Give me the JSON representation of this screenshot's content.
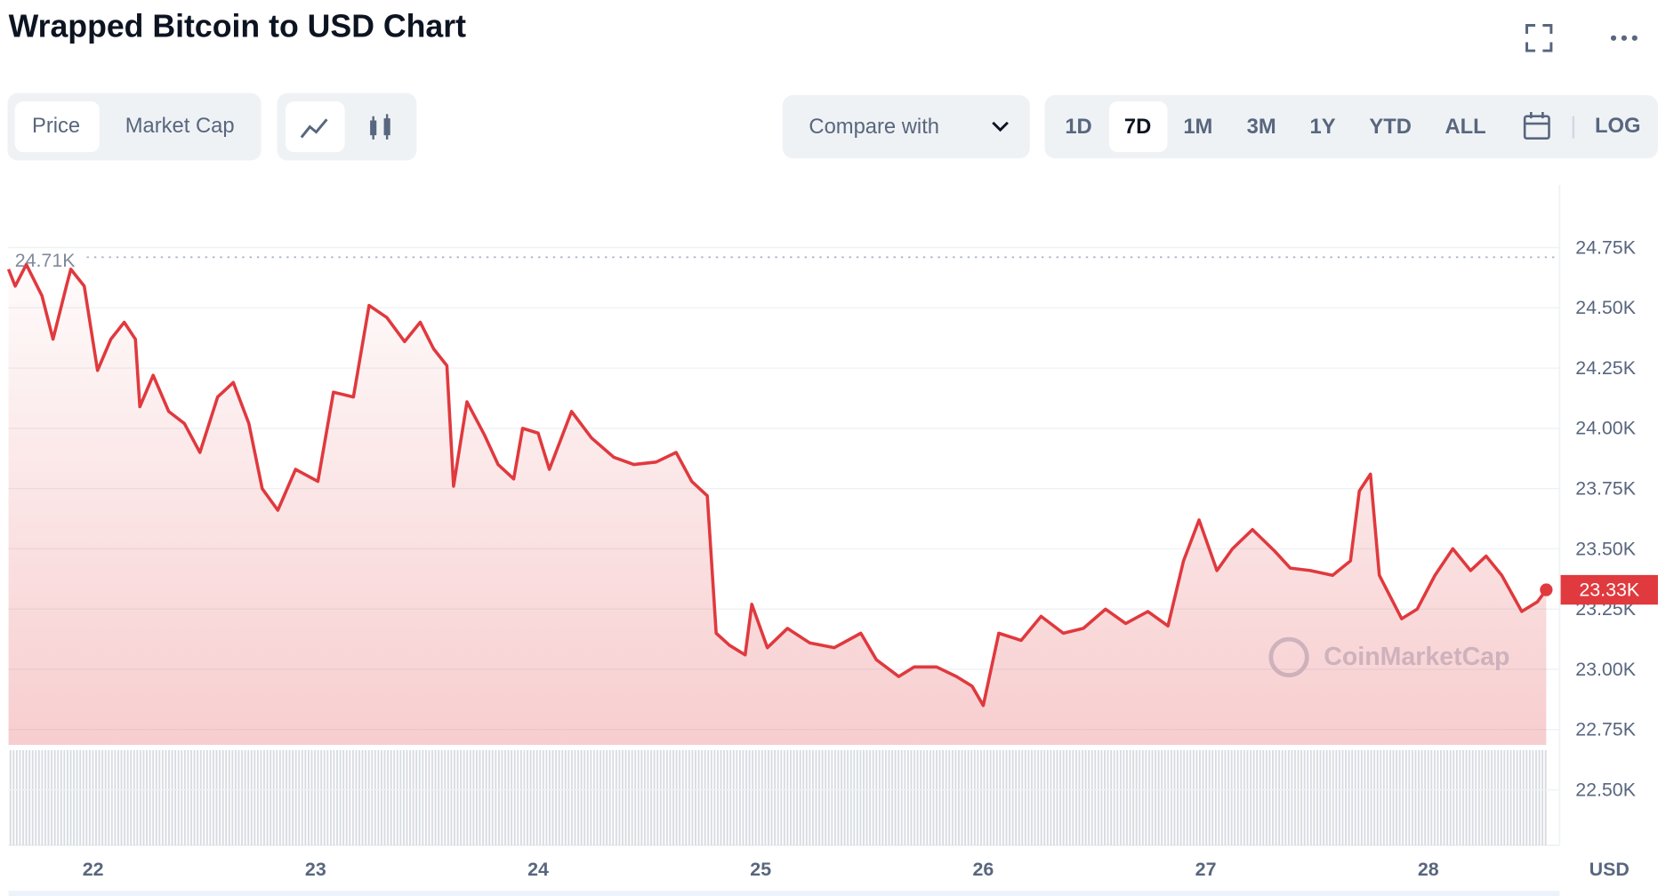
{
  "page": {
    "title": "Wrapped Bitcoin to USD Chart",
    "tabs": [
      "Price",
      "Market Cap"
    ],
    "compare": "Compare with",
    "ranges": [
      "1D",
      "7D",
      "1M",
      "3M",
      "1Y",
      "YTD",
      "ALL"
    ],
    "log": "LOG"
  },
  "chart_data": {
    "type": "line",
    "color": "#e0393e",
    "watermark": "CoinMarketCap",
    "y_axis_label": "USD",
    "x": [
      21.62,
      21.65,
      21.7,
      21.77,
      21.82,
      21.88,
      21.9,
      21.96,
      22.02,
      22.08,
      22.14,
      22.19,
      22.21,
      22.27,
      22.34,
      22.41,
      22.48,
      22.56,
      22.63,
      22.7,
      22.76,
      22.83,
      22.91,
      23.01,
      23.08,
      23.17,
      23.24,
      23.32,
      23.4,
      23.47,
      23.53,
      23.59,
      23.62,
      23.68,
      23.76,
      23.82,
      23.89,
      23.93,
      24.0,
      24.05,
      24.15,
      24.24,
      24.34,
      24.43,
      24.53,
      24.62,
      24.69,
      24.76,
      24.8,
      24.86,
      24.93,
      24.96,
      25.03,
      25.12,
      25.22,
      25.33,
      25.45,
      25.52,
      25.62,
      25.69,
      25.79,
      25.88,
      25.95,
      26.0,
      26.07,
      26.17,
      26.26,
      26.36,
      26.45,
      26.55,
      26.64,
      26.74,
      26.83,
      26.9,
      26.97,
      27.05,
      27.12,
      27.21,
      27.31,
      27.38,
      27.47,
      27.57,
      27.65,
      27.69,
      27.74,
      27.78,
      27.88,
      27.95,
      28.03,
      28.11,
      28.19,
      28.26,
      28.33,
      28.42,
      28.49,
      28.53
    ],
    "values": [
      24660,
      24590,
      24680,
      24550,
      24370,
      24590,
      24660,
      24590,
      24240,
      24370,
      24440,
      24370,
      24090,
      24220,
      24070,
      24020,
      23900,
      24130,
      24190,
      24020,
      23750,
      23660,
      23830,
      23780,
      24150,
      24130,
      24510,
      24460,
      24360,
      24440,
      24330,
      24260,
      23760,
      24110,
      23970,
      23850,
      23790,
      24000,
      23980,
      23830,
      24070,
      23960,
      23880,
      23850,
      23860,
      23900,
      23780,
      23720,
      23150,
      23100,
      23060,
      23270,
      23090,
      23170,
      23110,
      23090,
      23150,
      23040,
      22970,
      23010,
      23010,
      22970,
      22930,
      22850,
      23150,
      23120,
      23220,
      23150,
      23170,
      23250,
      23190,
      23240,
      23180,
      23450,
      23620,
      23410,
      23500,
      23580,
      23490,
      23420,
      23410,
      23390,
      23450,
      23740,
      23810,
      23390,
      23210,
      23250,
      23390,
      23500,
      23410,
      23470,
      23390,
      23240,
      23280,
      23330
    ],
    "xlim": [
      21.62,
      28.59
    ],
    "xticks": [
      22,
      23,
      24,
      25,
      26,
      27,
      28
    ],
    "ylim": [
      22270,
      25010
    ],
    "yticks": [
      {
        "value": 22500,
        "label": "22.50K"
      },
      {
        "value": 22750,
        "label": "22.75K"
      },
      {
        "value": 23000,
        "label": "23.00K"
      },
      {
        "value": 23250,
        "label": "23.25K"
      },
      {
        "value": 23500,
        "label": "23.50K"
      },
      {
        "value": 23750,
        "label": "23.75K"
      },
      {
        "value": 24000,
        "label": "24.00K"
      },
      {
        "value": 24250,
        "label": "24.25K"
      },
      {
        "value": 24500,
        "label": "24.50K"
      },
      {
        "value": 24750,
        "label": "24.75K"
      }
    ],
    "grid": true,
    "high_label": {
      "value": 24710,
      "label": "24.71K"
    },
    "last_label": {
      "value": 23330,
      "label": "23.33K"
    }
  }
}
